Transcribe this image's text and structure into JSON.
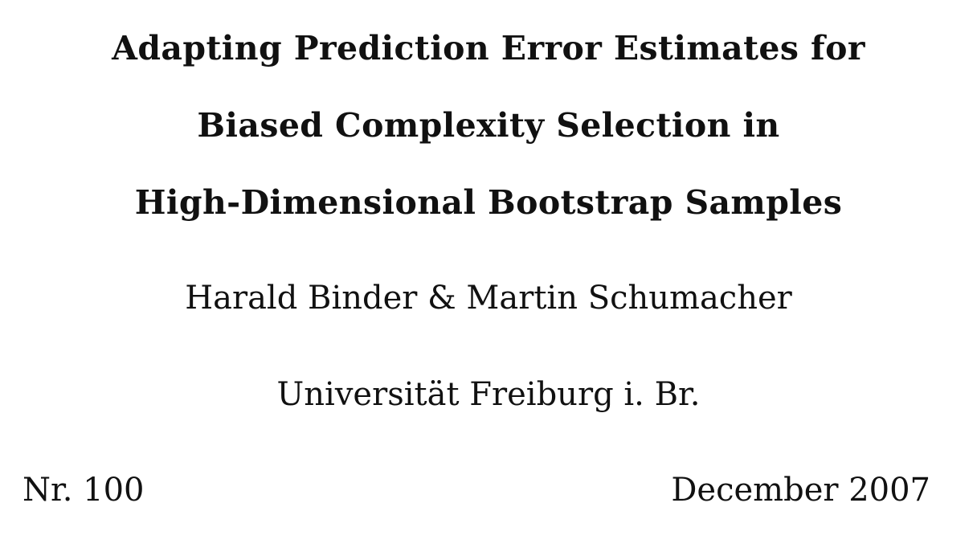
{
  "title": {
    "lines": [
      "Adapting Prediction Error Estimates for",
      "Biased Complexity Selection in",
      "High-Dimensional Bootstrap Samples"
    ]
  },
  "authors": "Harald Binder & Martin Schumacher",
  "affiliation": "Universität Freiburg i. Br.",
  "report": {
    "number": "Nr. 100",
    "date": "December 2007"
  }
}
